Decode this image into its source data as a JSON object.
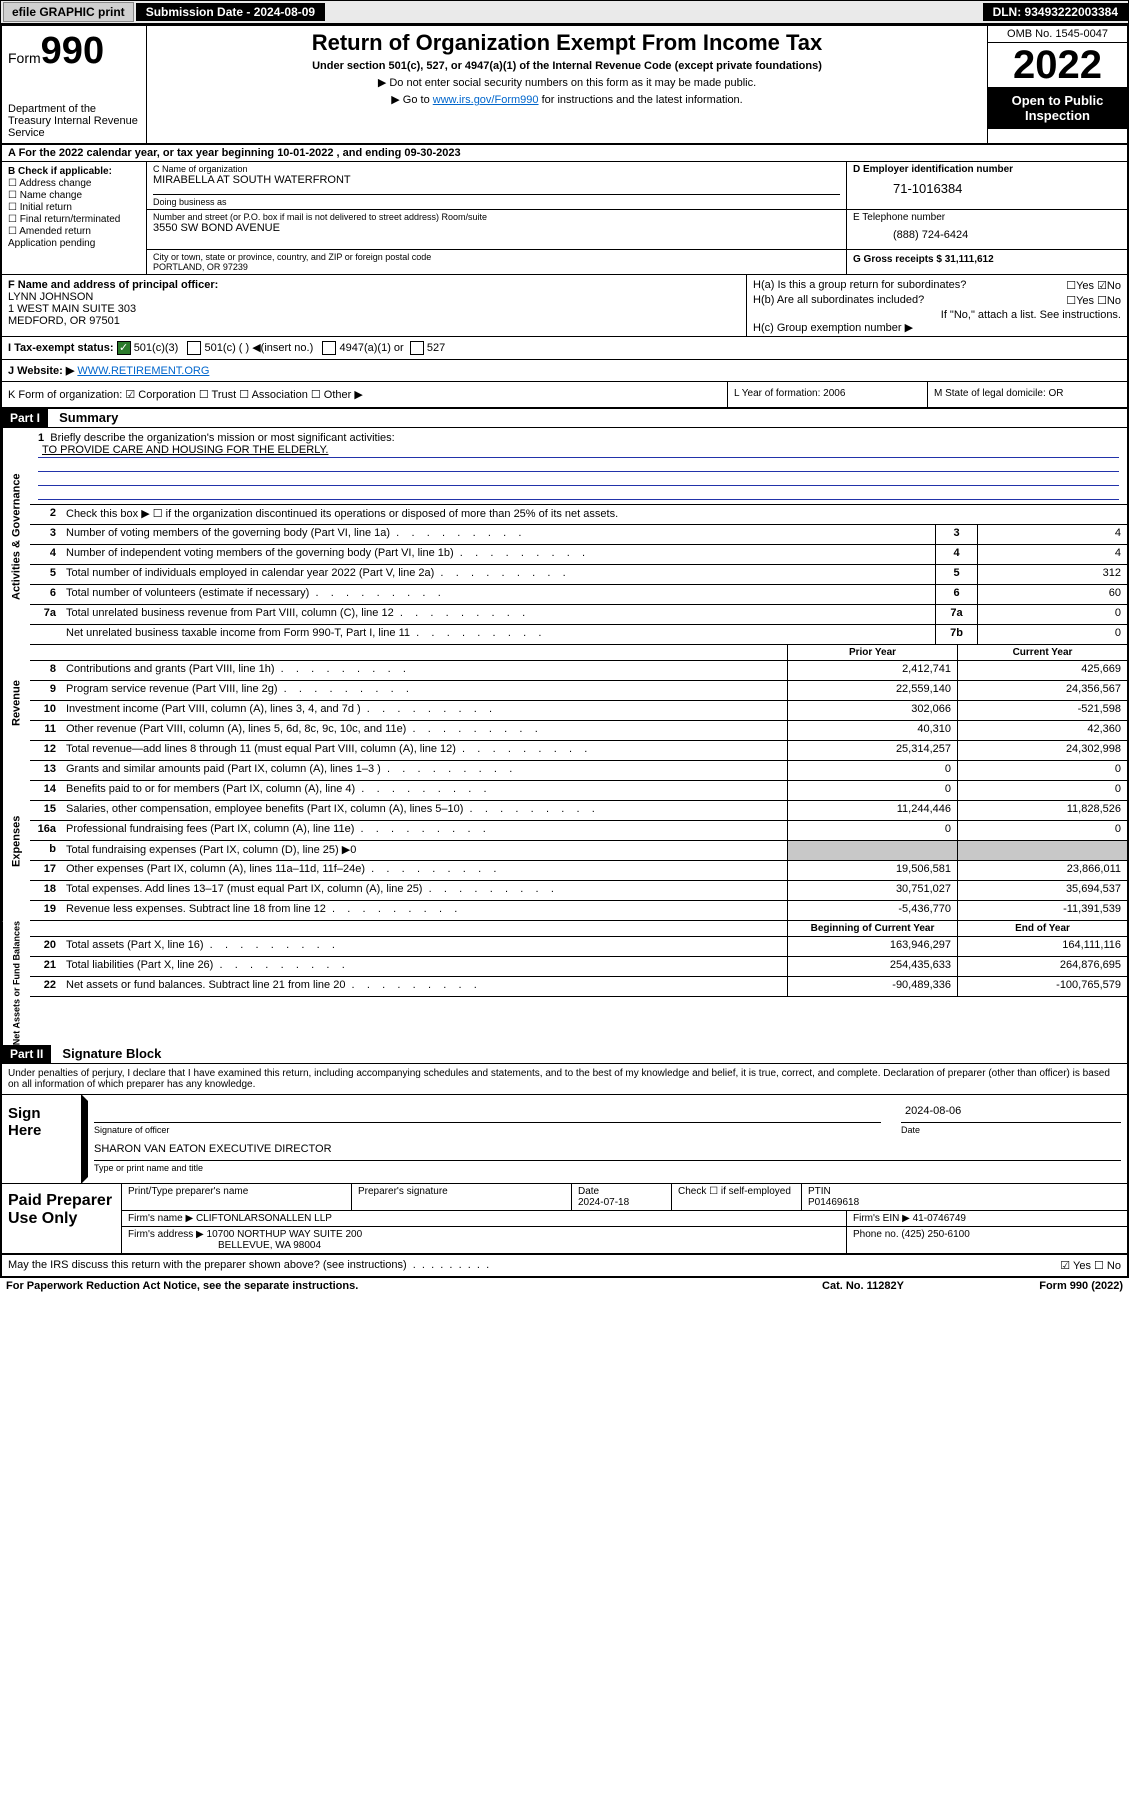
{
  "topbar": {
    "efile": "efile GRAPHIC print",
    "submission_date_label": "Submission Date - 2024-08-09",
    "dln": "DLN: 93493222003384"
  },
  "header": {
    "form_label": "Form",
    "form_num": "990",
    "dept": "Department of the Treasury Internal Revenue Service",
    "title": "Return of Organization Exempt From Income Tax",
    "subtitle": "Under section 501(c), 527, or 4947(a)(1) of the Internal Revenue Code (except private foundations)",
    "note1": "▶ Do not enter social security numbers on this form as it may be made public.",
    "note2_pre": "▶ Go to ",
    "note2_link": "www.irs.gov/Form990",
    "note2_post": " for instructions and the latest information.",
    "omb": "OMB No. 1545-0047",
    "year": "2022",
    "open": "Open to Public Inspection"
  },
  "row_a": "A For the 2022 calendar year, or tax year beginning 10-01-2022    , and ending 09-30-2023",
  "col_b": {
    "label": "B Check if applicable:",
    "items": [
      "☐ Address change",
      "☐ Name change",
      "☐ Initial return",
      "☐ Final return/terminated",
      "☐ Amended return",
      "   Application pending"
    ]
  },
  "col_c": {
    "name_label": "C Name of organization",
    "name": "MIRABELLA AT SOUTH WATERFRONT",
    "dba_label": "Doing business as",
    "dba": "",
    "addr_label": "Number and street (or P.O. box if mail is not delivered to street address)     Room/suite",
    "addr": "3550 SW BOND AVENUE",
    "city_label": "City or town, state or province, country, and ZIP or foreign postal code",
    "city": "PORTLAND, OR  97239"
  },
  "col_d": {
    "label": "D Employer identification number",
    "val": "71-1016384"
  },
  "col_e": {
    "label": "E Telephone number",
    "val": "(888) 724-6424"
  },
  "col_g": {
    "label": "G Gross receipts $",
    "val": "31,111,612"
  },
  "col_f": {
    "label": "F  Name and address of principal officer:",
    "name": "LYNN JOHNSON",
    "addr1": "1 WEST MAIN SUITE 303",
    "addr2": "MEDFORD, OR  97501"
  },
  "col_h": {
    "ha": "H(a)  Is this a group return for subordinates?",
    "ha_ans": "☐Yes ☑No",
    "hb": "H(b)  Are all subordinates included?",
    "hb_ans": "☐Yes ☐No",
    "hb_note": "If \"No,\" attach a list. See instructions.",
    "hc": "H(c)  Group exemption number ▶"
  },
  "row_i": {
    "label": "I    Tax-exempt status:",
    "opt1": "501(c)(3)",
    "opt2": "501(c) (  ) ◀(insert no.)",
    "opt3": "4947(a)(1) or",
    "opt4": "527"
  },
  "row_j": {
    "label": "J    Website: ▶",
    "val": "WWW.RETIREMENT.ORG"
  },
  "row_k": "K Form of organization:  ☑ Corporation  ☐ Trust  ☐ Association  ☐ Other ▶",
  "row_l": "L Year of formation: 2006",
  "row_m": "M State of legal domicile: OR",
  "parts": {
    "p1": "Part I",
    "p1_title": "Summary",
    "p2": "Part II",
    "p2_title": "Signature Block"
  },
  "summary": {
    "line1_label": "Briefly describe the organization's mission or most significant activities:",
    "line1_val": "TO PROVIDE CARE AND HOUSING FOR THE ELDERLY.",
    "line2": "Check this box ▶ ☐  if the organization discontinued its operations or disposed of more than 25% of its net assets.",
    "prior_year": "Prior Year",
    "current_year": "Current Year",
    "begin_year": "Beginning of Current Year",
    "end_year": "End of Year",
    "governance_label": "Activities & Governance",
    "revenue_label": "Revenue",
    "expenses_label": "Expenses",
    "netassets_label": "Net Assets or Fund Balances",
    "lines_single": [
      {
        "n": "3",
        "d": "Number of voting members of the governing body (Part VI, line 1a)",
        "box": "3",
        "v": "4"
      },
      {
        "n": "4",
        "d": "Number of independent voting members of the governing body (Part VI, line 1b)",
        "box": "4",
        "v": "4"
      },
      {
        "n": "5",
        "d": "Total number of individuals employed in calendar year 2022 (Part V, line 2a)",
        "box": "5",
        "v": "312"
      },
      {
        "n": "6",
        "d": "Total number of volunteers (estimate if necessary)",
        "box": "6",
        "v": "60"
      },
      {
        "n": "7a",
        "d": "Total unrelated business revenue from Part VIII, column (C), line 12",
        "box": "7a",
        "v": "0"
      },
      {
        "n": "",
        "d": "Net unrelated business taxable income from Form 990-T, Part I, line 11",
        "box": "7b",
        "v": "0"
      }
    ],
    "lines_rev": [
      {
        "n": "8",
        "d": "Contributions and grants (Part VIII, line 1h)",
        "py": "2,412,741",
        "cy": "425,669"
      },
      {
        "n": "9",
        "d": "Program service revenue (Part VIII, line 2g)",
        "py": "22,559,140",
        "cy": "24,356,567"
      },
      {
        "n": "10",
        "d": "Investment income (Part VIII, column (A), lines 3, 4, and 7d )",
        "py": "302,066",
        "cy": "-521,598"
      },
      {
        "n": "11",
        "d": "Other revenue (Part VIII, column (A), lines 5, 6d, 8c, 9c, 10c, and 11e)",
        "py": "40,310",
        "cy": "42,360"
      },
      {
        "n": "12",
        "d": "Total revenue—add lines 8 through 11 (must equal Part VIII, column (A), line 12)",
        "py": "25,314,257",
        "cy": "24,302,998"
      }
    ],
    "lines_exp": [
      {
        "n": "13",
        "d": "Grants and similar amounts paid (Part IX, column (A), lines 1–3 )",
        "py": "0",
        "cy": "0"
      },
      {
        "n": "14",
        "d": "Benefits paid to or for members (Part IX, column (A), line 4)",
        "py": "0",
        "cy": "0"
      },
      {
        "n": "15",
        "d": "Salaries, other compensation, employee benefits (Part IX, column (A), lines 5–10)",
        "py": "11,244,446",
        "cy": "11,828,526"
      },
      {
        "n": "16a",
        "d": "Professional fundraising fees (Part IX, column (A), line 11e)",
        "py": "0",
        "cy": "0"
      },
      {
        "n": "b",
        "d": "Total fundraising expenses (Part IX, column (D), line 25) ▶0",
        "py": "",
        "cy": "",
        "shaded": true
      },
      {
        "n": "17",
        "d": "Other expenses (Part IX, column (A), lines 11a–11d, 11f–24e)",
        "py": "19,506,581",
        "cy": "23,866,011"
      },
      {
        "n": "18",
        "d": "Total expenses. Add lines 13–17 (must equal Part IX, column (A), line 25)",
        "py": "30,751,027",
        "cy": "35,694,537"
      },
      {
        "n": "19",
        "d": "Revenue less expenses. Subtract line 18 from line 12",
        "py": "-5,436,770",
        "cy": "-11,391,539"
      }
    ],
    "lines_net": [
      {
        "n": "20",
        "d": "Total assets (Part X, line 16)",
        "py": "163,946,297",
        "cy": "164,111,116"
      },
      {
        "n": "21",
        "d": "Total liabilities (Part X, line 26)",
        "py": "254,435,633",
        "cy": "264,876,695"
      },
      {
        "n": "22",
        "d": "Net assets or fund balances. Subtract line 21 from line 20",
        "py": "-90,489,336",
        "cy": "-100,765,579"
      }
    ]
  },
  "sig": {
    "note": "Under penalties of perjury, I declare that I have examined this return, including accompanying schedules and statements, and to the best of my knowledge and belief, it is true, correct, and complete. Declaration of preparer (other than officer) is based on all information of which preparer has any knowledge.",
    "sign_here": "Sign Here",
    "sig_officer": "Signature of officer",
    "date_label": "Date",
    "date_val": "2024-08-06",
    "name_title": "SHARON VAN EATON  EXECUTIVE DIRECTOR",
    "name_title_label": "Type or print name and title",
    "paid_prep": "Paid Preparer Use Only",
    "prep_name_label": "Print/Type preparer's name",
    "prep_sig_label": "Preparer's signature",
    "prep_date_label": "Date",
    "prep_date": "2024-07-18",
    "prep_check": "Check ☐ if self-employed",
    "ptin_label": "PTIN",
    "ptin": "P01469618",
    "firm_name_label": "Firm's name    ▶",
    "firm_name": "CLIFTONLARSONALLEN LLP",
    "firm_ein_label": "Firm's EIN ▶",
    "firm_ein": "41-0746749",
    "firm_addr_label": "Firm's address ▶",
    "firm_addr1": "10700 NORTHUP WAY SUITE 200",
    "firm_addr2": "BELLEVUE, WA  98004",
    "firm_phone_label": "Phone no.",
    "firm_phone": "(425) 250-6100",
    "may_irs": "May the IRS discuss this return with the preparer shown above? (see instructions)",
    "may_ans": "☑ Yes  ☐ No"
  },
  "footer": {
    "pra": "For Paperwork Reduction Act Notice, see the separate instructions.",
    "cat": "Cat. No. 11282Y",
    "form": "Form 990 (2022)"
  }
}
